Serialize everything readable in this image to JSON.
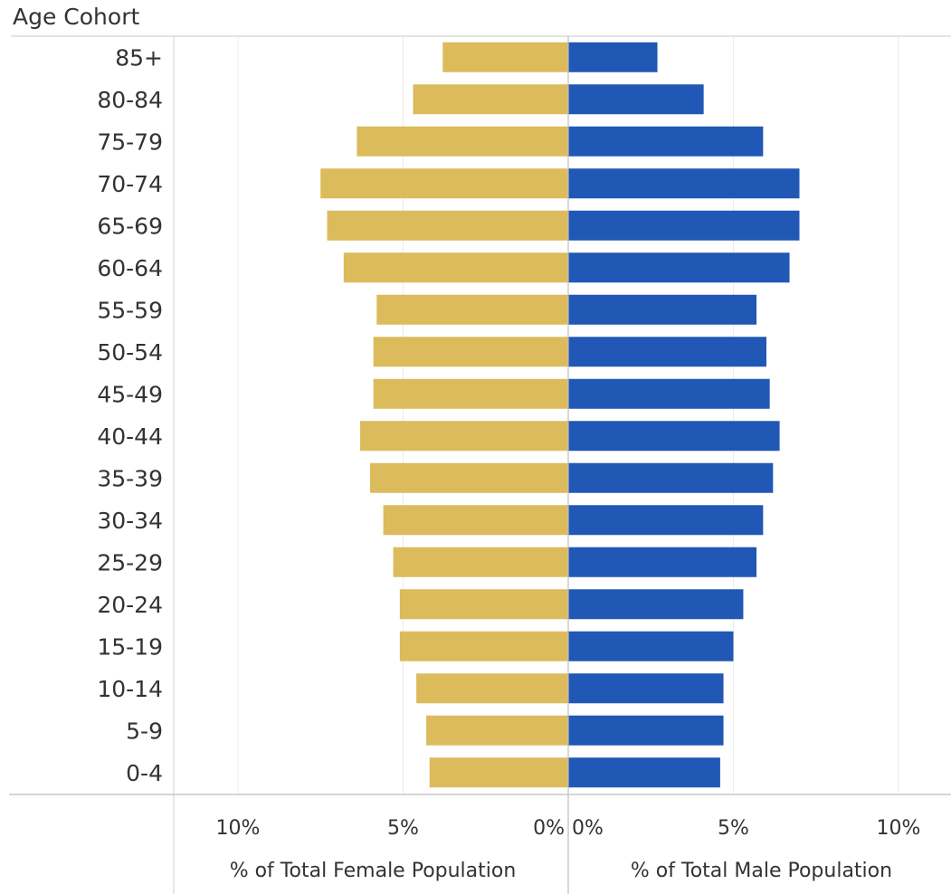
{
  "header": {
    "row_title": "Age Cohort"
  },
  "chart_data": {
    "type": "bar",
    "orientation": "horizontal",
    "layout": "population-pyramid",
    "categories": [
      "85+",
      "80-84",
      "75-79",
      "70-74",
      "65-69",
      "60-64",
      "55-59",
      "50-54",
      "45-49",
      "40-44",
      "35-39",
      "30-34",
      "25-29",
      "20-24",
      "15-19",
      "10-14",
      "5-9",
      "0-4"
    ],
    "series": [
      {
        "name": "% of Total Female Population",
        "side": "left",
        "color": "#dcbb5c",
        "values": [
          3.8,
          4.7,
          6.4,
          7.5,
          7.3,
          6.8,
          5.8,
          5.9,
          5.9,
          6.3,
          6.0,
          5.6,
          5.3,
          5.1,
          5.1,
          4.6,
          4.3,
          4.2
        ]
      },
      {
        "name": "% of Total Male Population",
        "side": "right",
        "color": "#2158b5",
        "values": [
          2.7,
          4.1,
          5.9,
          7.0,
          7.0,
          6.7,
          5.7,
          6.0,
          6.1,
          6.4,
          6.2,
          5.9,
          5.7,
          5.3,
          5.0,
          4.7,
          4.7,
          4.6
        ]
      }
    ],
    "left_axis": {
      "title": "% of Total Female Population",
      "ticks": [
        "10%",
        "5%",
        "0%"
      ],
      "tick_values": [
        10,
        5,
        0
      ]
    },
    "right_axis": {
      "title": "% of Total Male Population",
      "ticks": [
        "0%",
        "5%",
        "10%"
      ],
      "tick_values": [
        0,
        5,
        10
      ]
    },
    "xlim": [
      0,
      10
    ],
    "grid": true,
    "legend": "none"
  }
}
